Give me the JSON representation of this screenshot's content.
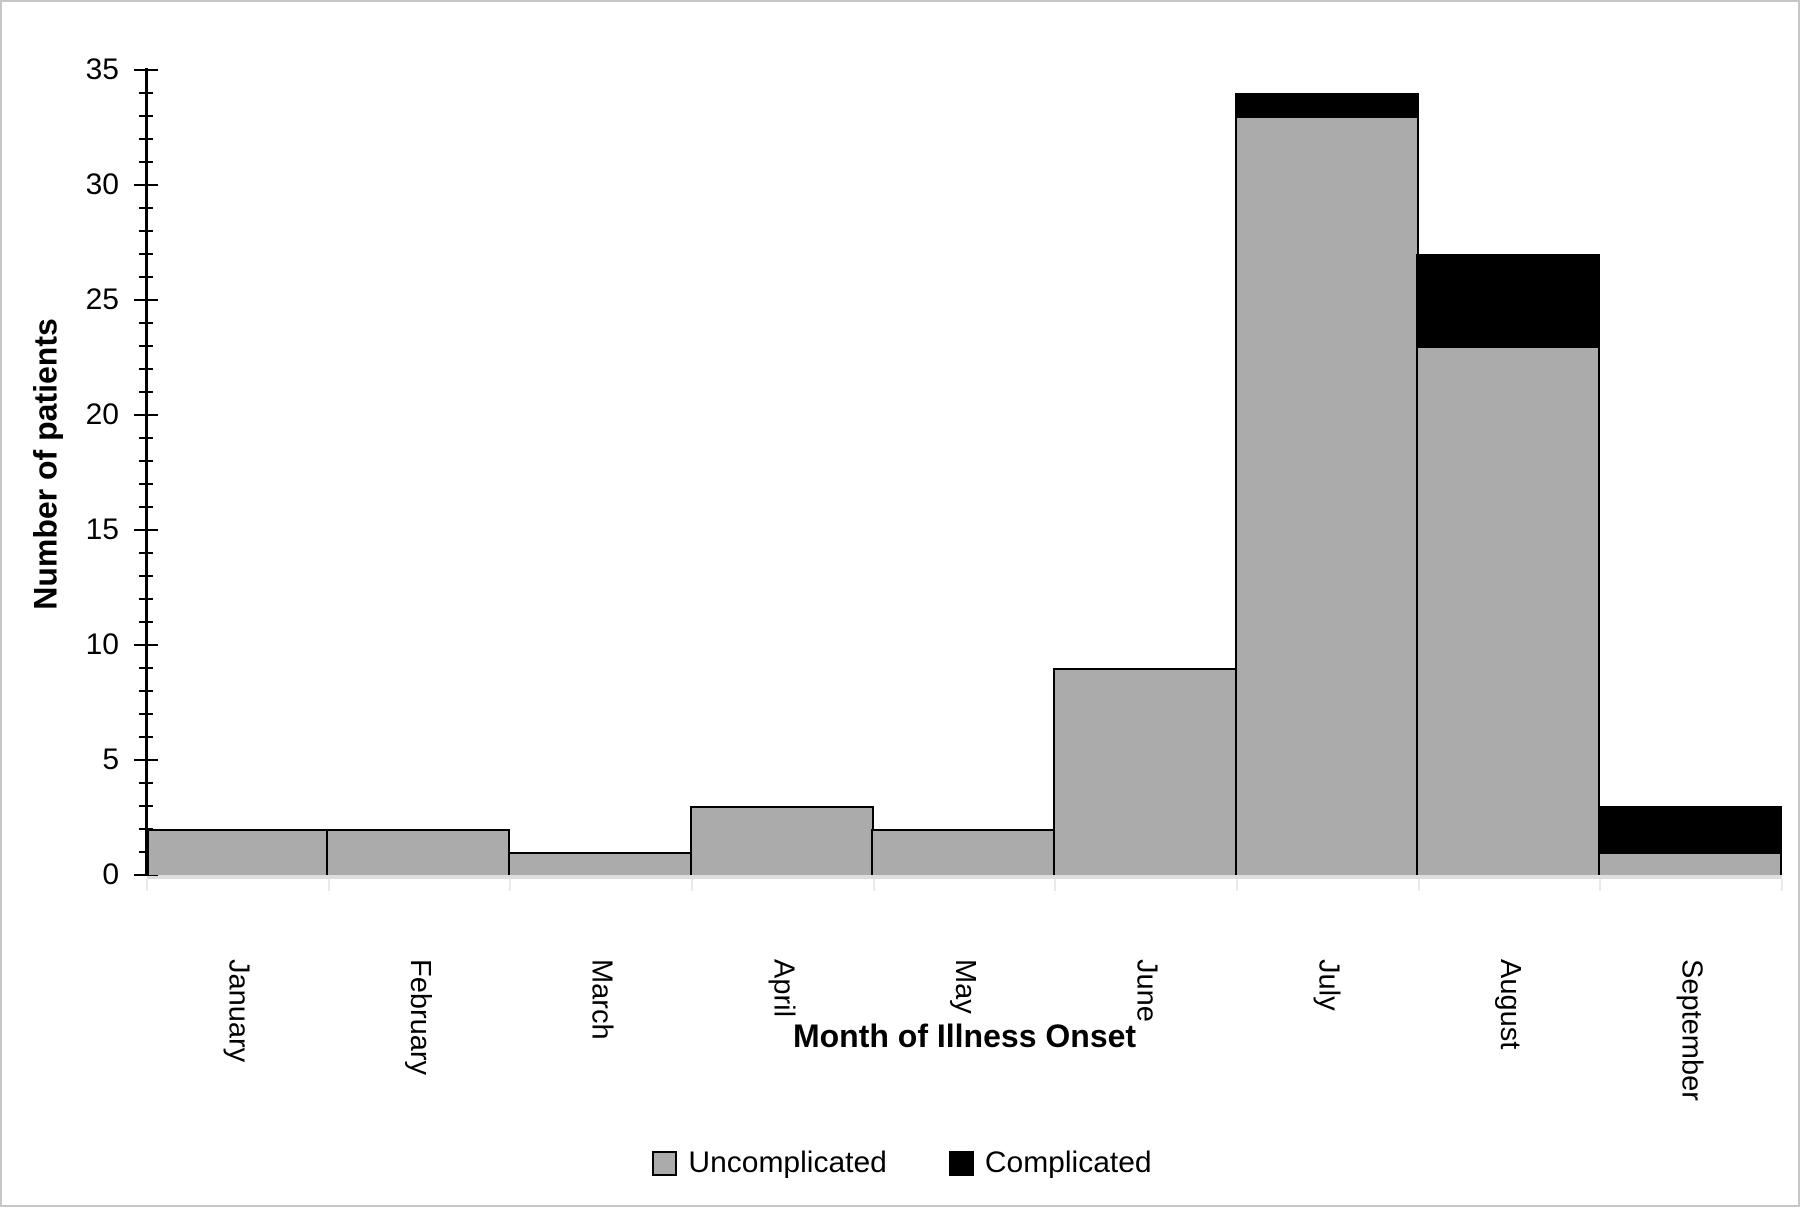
{
  "chart_data": {
    "type": "bar",
    "stacked": true,
    "title": "",
    "xlabel": "Month of Illness Onset",
    "ylabel": "Number of patients",
    "categories": [
      "January",
      "February",
      "March",
      "April",
      "May",
      "June",
      "July",
      "August",
      "September"
    ],
    "series": [
      {
        "name": "Uncomplicated",
        "color": "#ABABAB",
        "values": [
          2,
          2,
          1,
          3,
          2,
          9,
          33,
          23,
          1
        ]
      },
      {
        "name": "Complicated",
        "color": "#000000",
        "values": [
          0,
          0,
          0,
          0,
          0,
          0,
          1,
          4,
          2
        ]
      }
    ],
    "totals": [
      2,
      2,
      1,
      3,
      2,
      9,
      34,
      27,
      3
    ],
    "ylim": [
      0,
      35
    ],
    "y_major_step": 5,
    "y_minor_step": 1,
    "grid": false,
    "legend_position": "bottom",
    "bar_gap": 0,
    "axis_colors": {
      "y_axis": "#000000",
      "x_axis": "#dedede"
    }
  }
}
